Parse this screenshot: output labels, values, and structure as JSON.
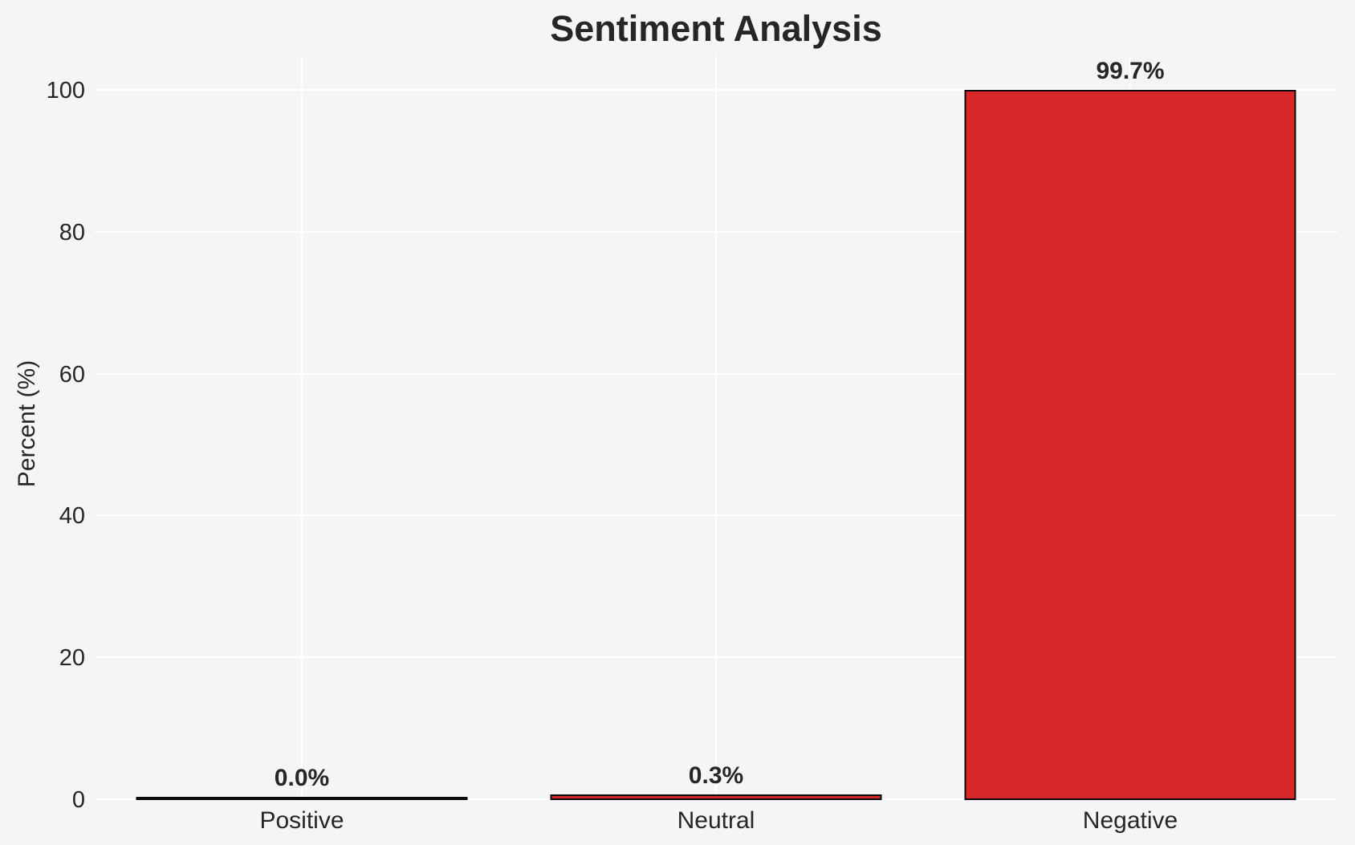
{
  "title": "Sentiment Analysis",
  "chart_data": {
    "type": "bar",
    "title": "Sentiment Analysis",
    "categories": [
      "Positive",
      "Neutral",
      "Negative"
    ],
    "values": [
      0.0,
      0.3,
      99.7
    ],
    "bar_labels": [
      "0.0%",
      "0.3%",
      "99.7%"
    ],
    "xlabel": "",
    "ylabel": "Percent (%)",
    "ylim": [
      0,
      104.8
    ],
    "yticks": [
      0,
      20,
      40,
      60,
      80,
      100
    ],
    "grid": true,
    "legend_position": "none",
    "colors": {
      "bar_fill": "#d62728",
      "bar_edge": "#0a0a0a",
      "background": "#f5f5f6",
      "grid": "#ffffff",
      "text": "#262626"
    }
  }
}
